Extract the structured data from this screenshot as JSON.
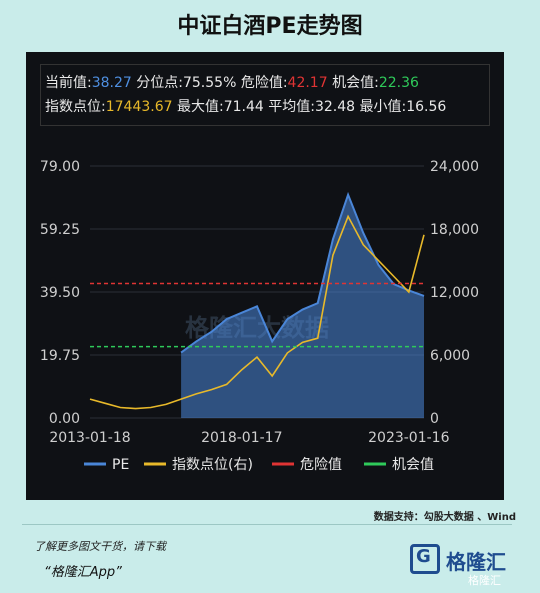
{
  "title": "中证白酒PE走势图",
  "stats": {
    "row1": [
      {
        "label": "当前值:",
        "value": "38.27",
        "color": "blue"
      },
      {
        "label": "分位点:",
        "value": "75.55%",
        "color": "white"
      },
      {
        "label": "危险值:",
        "value": "42.17",
        "color": "red"
      },
      {
        "label": "机会值:",
        "value": "22.36",
        "color": "green"
      }
    ],
    "row2": [
      {
        "label": "指数点位:",
        "value": "17443.67",
        "color": "yellow"
      },
      {
        "label": "最大值:",
        "value": "71.44",
        "color": "white"
      },
      {
        "label": "平均值:",
        "value": "32.48",
        "color": "white"
      },
      {
        "label": "最小值:",
        "value": "16.56",
        "color": "white"
      }
    ]
  },
  "chart_data": {
    "type": "area",
    "x": [
      "2013-01-18",
      "2013-07",
      "2014-01",
      "2014-07",
      "2015-01",
      "2015-07",
      "2016-01",
      "2016-07",
      "2017-01",
      "2017-07",
      "2018-01-17",
      "2018-07",
      "2019-01",
      "2019-07",
      "2020-01",
      "2020-07",
      "2021-01",
      "2021-02",
      "2021-07",
      "2022-01",
      "2022-07",
      "2023-01-16",
      "2023-07"
    ],
    "series": [
      {
        "name": "PE",
        "axis": "left",
        "color": "#4a86d8",
        "values": [
          null,
          null,
          null,
          null,
          null,
          null,
          20.5,
          24,
          27,
          31,
          33,
          35,
          24,
          31,
          34,
          36,
          56,
          70,
          58,
          48,
          42,
          40,
          38.27
        ]
      },
      {
        "name": "指数点位(右)",
        "axis": "right",
        "color": "#e8b92a",
        "values": [
          1800,
          1400,
          1000,
          900,
          1000,
          1300,
          1800,
          2300,
          2700,
          3200,
          4600,
          5800,
          4000,
          6200,
          7200,
          7600,
          15500,
          19200,
          16500,
          15000,
          13500,
          12000,
          17443.67
        ]
      }
    ],
    "hlines": [
      {
        "name": "危险值",
        "value": 42.17,
        "color": "#e03434"
      },
      {
        "name": "机会值",
        "value": 22.36,
        "color": "#2fca5a"
      }
    ],
    "y_left_ticks": [
      "0.00",
      "19.75",
      "39.50",
      "59.25",
      "79.00"
    ],
    "y_left_lim": [
      0,
      79
    ],
    "y_right_ticks": [
      "0",
      "6,000",
      "12,000",
      "18,000",
      "24,000"
    ],
    "y_right_lim": [
      0,
      24000
    ],
    "x_ticks": [
      "2013-01-18",
      "2018-01-17",
      "2023-01-16"
    ],
    "legend": [
      "PE",
      "指数点位(右)",
      "危险值",
      "机会值"
    ],
    "legend_position": "bottom",
    "watermark": "格隆汇大数据"
  },
  "source": "数据支持：勾股大数据 、Wind",
  "footer": {
    "line1": "了解更多图文干货，请下载",
    "line2": "“格隆汇App”"
  },
  "logo": {
    "mark": "G",
    "text": "格隆汇"
  },
  "corner_watermark": "格隆汇"
}
